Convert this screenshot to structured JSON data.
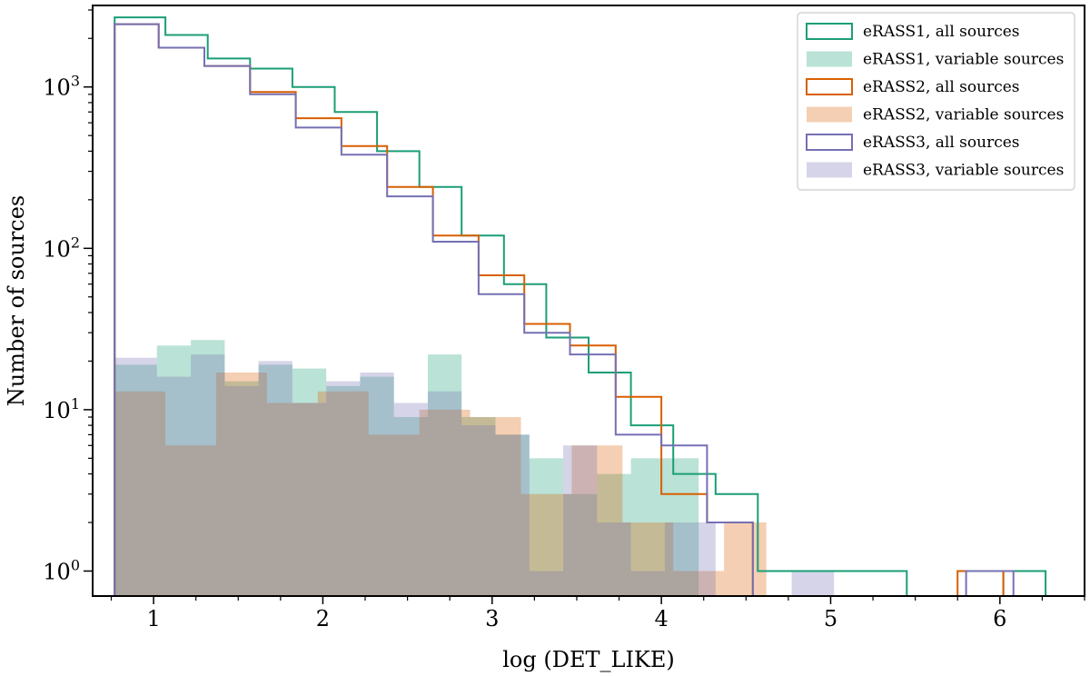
{
  "chart_data": {
    "type": "histogram-step",
    "xlabel": "log (DET_LIKE)",
    "ylabel": "Number of sources",
    "xlim": [
      0.64,
      6.5
    ],
    "ylim": [
      0.7,
      3200
    ],
    "yscale": "log",
    "xticks": [
      1,
      2,
      3,
      4,
      5,
      6
    ],
    "xtick_labels": [
      "1",
      "2",
      "3",
      "4",
      "5",
      "6"
    ],
    "yticks": [
      1,
      10,
      100,
      1000
    ],
    "ytick_labels": [
      {
        "base": "10",
        "exp": "0"
      },
      {
        "base": "10",
        "exp": "1"
      },
      {
        "base": "10",
        "exp": "2"
      },
      {
        "base": "10",
        "exp": "3"
      }
    ],
    "legend_position": "top-right",
    "colors": {
      "eRASS1": "#1b9e77",
      "eRASS2": "#d95f02",
      "eRASS3": "#7570b3"
    },
    "series": [
      {
        "name": "eRASS1, all sources",
        "survey": "eRASS1",
        "style": "step",
        "edges": [
          0.77,
          1.07,
          1.32,
          1.57,
          1.82,
          2.07,
          2.32,
          2.57,
          2.82,
          3.07,
          3.32,
          3.57,
          3.82,
          4.07,
          4.32,
          4.57,
          4.82,
          5.07,
          5.32,
          5.45
        ],
        "counts": [
          2700,
          2100,
          1500,
          1300,
          1000,
          700,
          400,
          240,
          120,
          60,
          28,
          17,
          8,
          4,
          3,
          1,
          1,
          1,
          1
        ],
        "extra_bins": [
          {
            "x0": 6.02,
            "x1": 6.27,
            "count": 1
          }
        ]
      },
      {
        "name": "eRASS1, variable sources",
        "survey": "eRASS1",
        "style": "fill",
        "edges": [
          0.77,
          1.02,
          1.22,
          1.42,
          1.62,
          1.82,
          2.02,
          2.22,
          2.42,
          2.62,
          2.82,
          3.02,
          3.22,
          3.42,
          3.62,
          3.82,
          4.02,
          4.22
        ],
        "counts": [
          19,
          25,
          27,
          15,
          19,
          18,
          14,
          16,
          9,
          22,
          9,
          7,
          5,
          3,
          4,
          5,
          5
        ],
        "extra_bins": []
      },
      {
        "name": "eRASS2, all sources",
        "survey": "eRASS2",
        "style": "step",
        "edges": [
          0.77,
          1.03,
          1.3,
          1.57,
          1.84,
          2.11,
          2.38,
          2.65,
          2.92,
          3.19,
          3.46,
          3.73,
          4.0,
          4.27,
          4.54
        ],
        "counts": [
          2450,
          1750,
          1350,
          930,
          640,
          430,
          240,
          120,
          68,
          34,
          25,
          12,
          3,
          2
        ],
        "extra_bins": [
          {
            "x0": 5.75,
            "x1": 6.02,
            "count": 1
          }
        ]
      },
      {
        "name": "eRASS2, variable sources",
        "survey": "eRASS2",
        "style": "fill",
        "edges": [
          0.77,
          1.07,
          1.37,
          1.67,
          1.97,
          2.27,
          2.57,
          2.87,
          3.17,
          3.47,
          3.77,
          4.07,
          4.37,
          4.62
        ],
        "counts": [
          13,
          6,
          17,
          11,
          13,
          7,
          10,
          9,
          3,
          6,
          2,
          1,
          2
        ],
        "extra_bins": []
      },
      {
        "name": "eRASS3, all sources",
        "survey": "eRASS3",
        "style": "step",
        "edges": [
          0.77,
          1.03,
          1.3,
          1.57,
          1.84,
          2.11,
          2.38,
          2.65,
          2.92,
          3.19,
          3.46,
          3.73,
          4.0,
          4.27,
          4.54
        ],
        "counts": [
          2450,
          1750,
          1350,
          900,
          560,
          380,
          210,
          110,
          52,
          30,
          22,
          7,
          6,
          2
        ],
        "extra_bins": [
          {
            "x0": 5.8,
            "x1": 6.08,
            "count": 1
          }
        ]
      },
      {
        "name": "eRASS3, variable sources",
        "survey": "eRASS3",
        "style": "fill",
        "edges": [
          0.77,
          1.02,
          1.22,
          1.42,
          1.62,
          1.82,
          2.02,
          2.22,
          2.42,
          2.62,
          2.82,
          3.02,
          3.22,
          3.42,
          3.62,
          3.82,
          4.02,
          4.22,
          4.32
        ],
        "counts": [
          21,
          16,
          22,
          14,
          20,
          11,
          15,
          17,
          11,
          13,
          8,
          7,
          1,
          6,
          2,
          1,
          2,
          2
        ],
        "extra_bins": [
          {
            "x0": 4.77,
            "x1": 5.02,
            "count": 1
          }
        ]
      }
    ]
  }
}
